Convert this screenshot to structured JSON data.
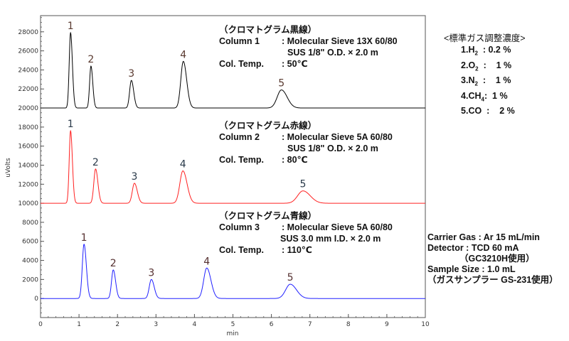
{
  "chart_data": {
    "type": "line",
    "xlabel": "min",
    "ylabel": "uVolts",
    "xlim": [
      0,
      10
    ],
    "ylim": [
      -2000,
      29700
    ],
    "x_ticks": [
      0,
      1,
      2,
      3,
      4,
      5,
      6,
      7,
      8,
      9,
      10
    ],
    "y_ticks": [
      0,
      2000,
      4000,
      6000,
      8000,
      10000,
      12000,
      14000,
      16000,
      18000,
      20000,
      22000,
      24000,
      26000,
      28000
    ],
    "grid": false,
    "series": [
      {
        "name": "Column 1 (black)",
        "color": "#000000",
        "baseline": 20000,
        "peaks": [
          {
            "label": "1",
            "rt": 0.78,
            "height": 27900,
            "sigma": 0.035
          },
          {
            "label": "2",
            "rt": 1.31,
            "height": 24400,
            "sigma": 0.035
          },
          {
            "label": "3",
            "rt": 2.36,
            "height": 22900,
            "sigma": 0.045
          },
          {
            "label": "4",
            "rt": 3.71,
            "height": 24900,
            "sigma": 0.065
          },
          {
            "label": "5",
            "rt": 6.26,
            "height": 21900,
            "sigma": 0.11
          }
        ]
      },
      {
        "name": "Column 2 (red)",
        "color": "#ff2020",
        "baseline": 10000,
        "peaks": [
          {
            "label": "1",
            "rt": 0.78,
            "height": 17600,
            "sigma": 0.035
          },
          {
            "label": "2",
            "rt": 1.43,
            "height": 13600,
            "sigma": 0.045
          },
          {
            "label": "3",
            "rt": 2.44,
            "height": 12100,
            "sigma": 0.055
          },
          {
            "label": "4",
            "rt": 3.7,
            "height": 13400,
            "sigma": 0.08
          },
          {
            "label": "5",
            "rt": 6.82,
            "height": 11300,
            "sigma": 0.14
          }
        ]
      },
      {
        "name": "Column 3 (blue)",
        "color": "#2020ff",
        "baseline": 0,
        "peaks": [
          {
            "label": "1",
            "rt": 1.13,
            "height": 5700,
            "sigma": 0.045
          },
          {
            "label": "2",
            "rt": 1.89,
            "height": 3000,
            "sigma": 0.045
          },
          {
            "label": "3",
            "rt": 2.88,
            "height": 2000,
            "sigma": 0.055
          },
          {
            "label": "4",
            "rt": 4.32,
            "height": 3200,
            "sigma": 0.08
          },
          {
            "label": "5",
            "rt": 6.49,
            "height": 1500,
            "sigma": 0.12
          }
        ]
      }
    ]
  },
  "annotations": {
    "col1": {
      "title": "（クロマトグラム黒線）",
      "column_label": "Column 1",
      "column_value": ": Molecular Sieve 13X 60/80",
      "column_value2": "SUS 1/8\" O.D. × 2.0 m",
      "temp_label": "Col. Temp.",
      "temp_value": ": 50℃"
    },
    "col2": {
      "title": "（クロマトグラム赤線）",
      "column_label": "Column 2",
      "column_value": ": Molecular Sieve 5A 60/80",
      "column_value2": "SUS 1/8\" O.D. × 2.0 m",
      "temp_label": "Col. Temp.",
      "temp_value": ": 80℃"
    },
    "col3": {
      "title": "（クロマトグラム青線）",
      "column_label": "Column 3",
      "column_value": ": Molecular Sieve 5A 60/80",
      "column_value2": "SUS 3.0 mm I.D. × 2.0 m",
      "temp_label": "Col. Temp.",
      "temp_value": ": 110℃"
    }
  },
  "standard_gas": {
    "title": "<標準ガス調整濃度>",
    "items": [
      {
        "num": "1.",
        "name": "H",
        "sub": "2",
        "conc": "  : 0.2 %"
      },
      {
        "num": "2.",
        "name": "O",
        "sub": "2",
        "conc": "  :    1 %"
      },
      {
        "num": "3.",
        "name": "N",
        "sub": "2",
        "conc": "  :    1 %"
      },
      {
        "num": "4.",
        "name": "CH",
        "sub": "4",
        "conc": ":  1 %"
      },
      {
        "num": "5.",
        "name": "CO",
        "sub": "",
        "conc": "  :    2 %"
      }
    ]
  },
  "conditions": {
    "carrier": "Carrier Gas : Ar 15 mL/min",
    "detector": "Detector : TCD 60 mA",
    "detector_note": "（GC3210H使用）",
    "sample": "Sample Size : 1.0 mL",
    "sample_note": "（ガスサンプラー GS-231使用）"
  }
}
